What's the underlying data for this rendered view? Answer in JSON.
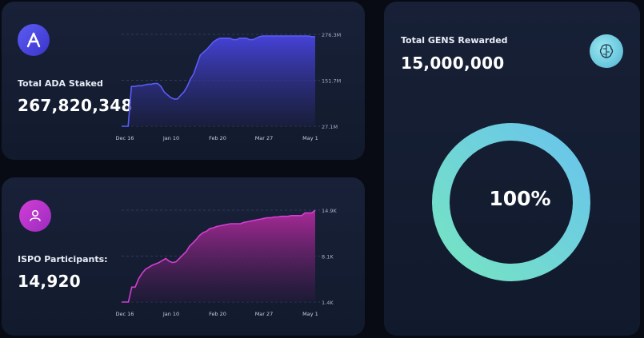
{
  "ada_card": {
    "label": "Total ADA Staked",
    "value": "267,820,348",
    "icon": "cardano-icon",
    "accent": "#4a47e8",
    "chart_data": {
      "type": "area",
      "x_ticks": [
        "Dec 16",
        "Jan 10",
        "Feb 20",
        "Mar 27",
        "May 1"
      ],
      "y_ticks": [
        "276.3M",
        "151.7M",
        "27.1M"
      ],
      "ylim": [
        27.1,
        276.3
      ],
      "series": [
        {
          "values": [
            27.1,
            27.1,
            27.1,
            135,
            135,
            137,
            137,
            139,
            141,
            141,
            143,
            143,
            135,
            120,
            112,
            105,
            101,
            101,
            111,
            120,
            135,
            155,
            170,
            196,
            220,
            228,
            236,
            246,
            256,
            262,
            266,
            266,
            266,
            266,
            262,
            262,
            266,
            266,
            266,
            262,
            262,
            266,
            270,
            272,
            272,
            272,
            272,
            272,
            272,
            272,
            272,
            272,
            272,
            272,
            272,
            272,
            272,
            272,
            270,
            270
          ]
        }
      ]
    }
  },
  "ispo_card": {
    "label": "ISPO Participants:",
    "value": "14,920",
    "icon": "user-icon",
    "accent": "#c030b5",
    "chart_data": {
      "type": "area",
      "x_ticks": [
        "Dec 16",
        "Jan 10",
        "Feb 20",
        "Mar 27",
        "May 1"
      ],
      "y_ticks": [
        "14.9K",
        "8.1K",
        "1.4K"
      ],
      "ylim": [
        1.4,
        14.9
      ],
      "series": [
        {
          "values": [
            1.4,
            1.4,
            1.4,
            3.6,
            3.6,
            4.8,
            5.6,
            6.2,
            6.5,
            6.8,
            7.0,
            7.2,
            7.5,
            7.8,
            7.4,
            7.2,
            7.3,
            7.8,
            8.3,
            8.8,
            9.6,
            10.1,
            10.6,
            11.2,
            11.6,
            11.8,
            12.2,
            12.3,
            12.5,
            12.6,
            12.7,
            12.8,
            12.9,
            12.9,
            12.9,
            12.9,
            13.1,
            13.2,
            13.3,
            13.4,
            13.5,
            13.6,
            13.7,
            13.8,
            13.8,
            13.9,
            13.9,
            14.0,
            14.0,
            14.0,
            14.1,
            14.1,
            14.1,
            14.1,
            14.5,
            14.5,
            14.5,
            14.9
          ]
        }
      ]
    }
  },
  "gens_card": {
    "label": "Total GENS Rewarded",
    "value": "15,000,000",
    "icon": "brain-icon",
    "progress_text": "100%",
    "progress_fraction": 1.0,
    "ring_colors": [
      "#74e3c4",
      "#6ac6ea"
    ]
  }
}
